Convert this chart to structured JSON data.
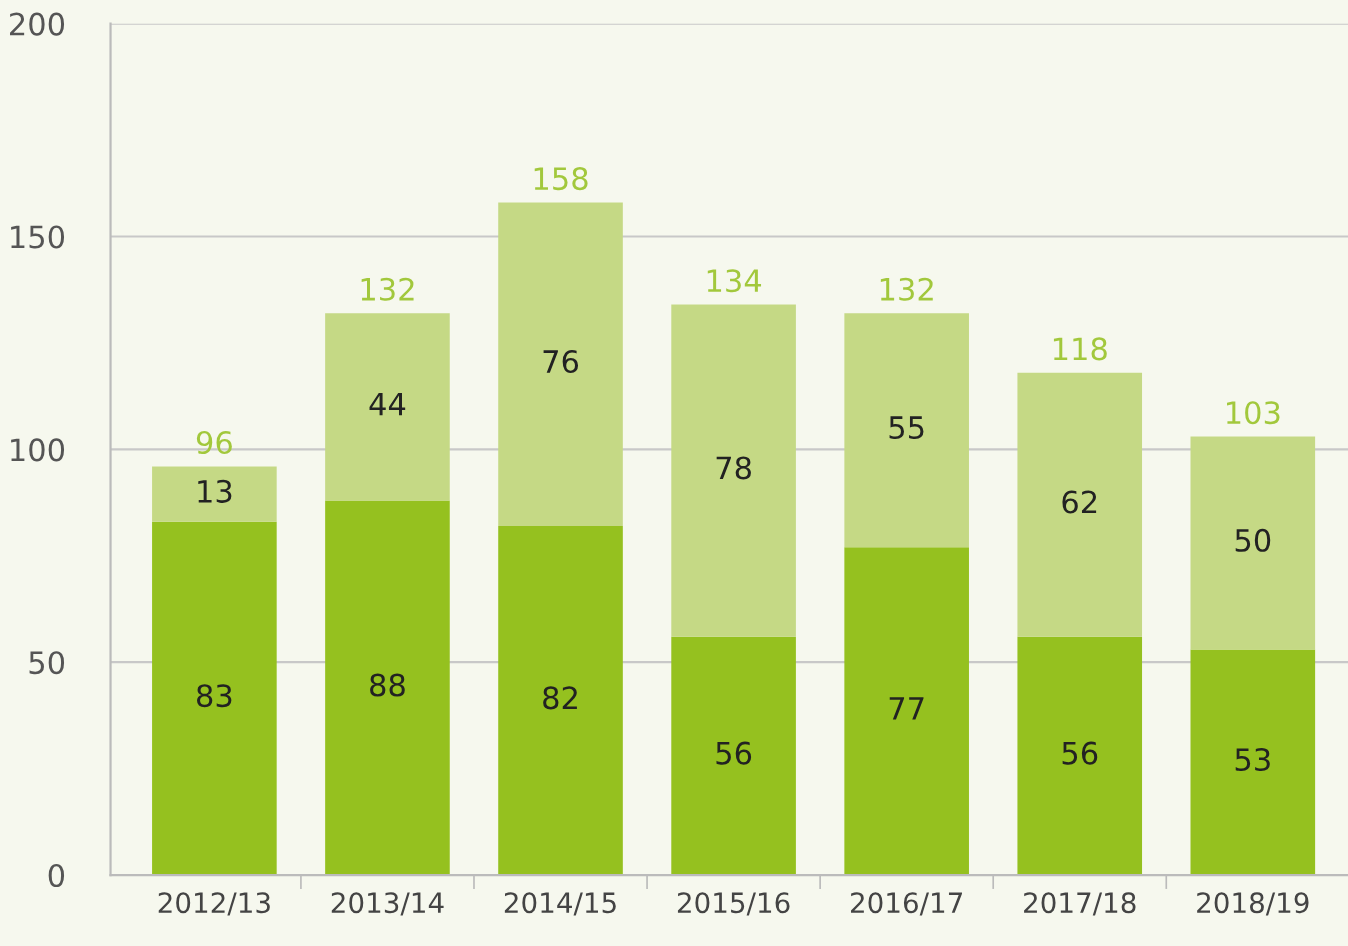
{
  "chart_data": {
    "type": "bar",
    "stacked": true,
    "data_labels": true,
    "categories": [
      "2012/13",
      "2013/14",
      "2014/15",
      "2015/16",
      "2016/17",
      "2017/18",
      "2018/19"
    ],
    "series": [
      {
        "color": "#95c11f",
        "values": [
          83,
          88,
          82,
          56,
          77,
          56,
          53
        ]
      },
      {
        "color": "#c5d985",
        "values": [
          13,
          44,
          76,
          78,
          55,
          62,
          50
        ]
      }
    ],
    "totals": [
      "96",
      "132",
      "158",
      "134",
      "132",
      "118",
      "103"
    ],
    "ylim": [
      0,
      200
    ],
    "yticks": [
      0,
      50,
      100,
      150,
      200
    ],
    "grid": "y",
    "legend": false
  }
}
